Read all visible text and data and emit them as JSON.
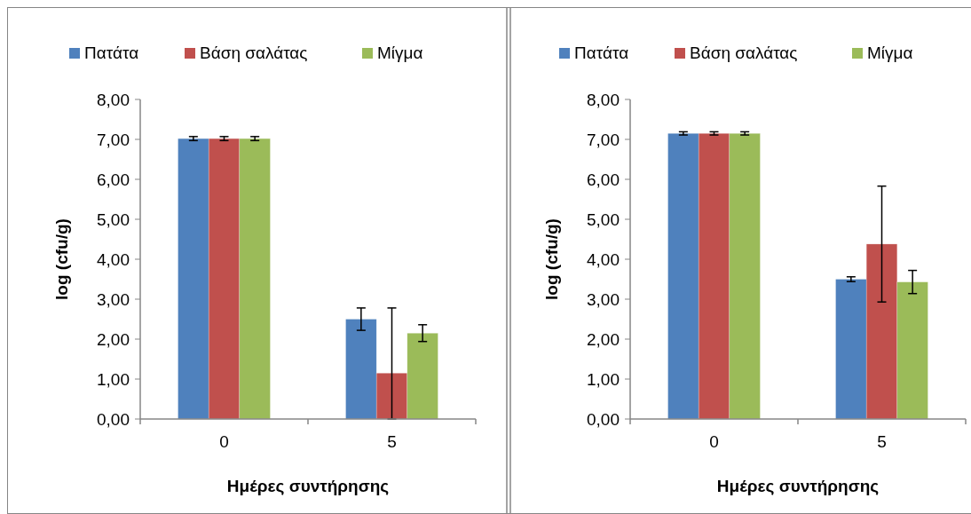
{
  "chart_data": [
    {
      "type": "bar",
      "categories": [
        "0",
        "5"
      ],
      "xlabel": "Ημέρες συντήρησης",
      "ylabel": "log (cfu/g)",
      "ylim": [
        0,
        8
      ],
      "yticks": [
        {
          "value": 0,
          "label": "0,00"
        },
        {
          "value": 1,
          "label": "1,00"
        },
        {
          "value": 2,
          "label": "2,00"
        },
        {
          "value": 3,
          "label": "3,00"
        },
        {
          "value": 4,
          "label": "4,00"
        },
        {
          "value": 5,
          "label": "5,00"
        },
        {
          "value": 6,
          "label": "6,00"
        },
        {
          "value": 7,
          "label": "7,00"
        },
        {
          "value": 8,
          "label": "8,00"
        }
      ],
      "legend": "top",
      "series": [
        {
          "name": "Πατάτα",
          "color": "#4f81bd",
          "values": [
            7.02,
            2.5
          ],
          "errors": [
            0.05,
            0.28
          ]
        },
        {
          "name": "Βάση σαλάτας",
          "color": "#c0504d",
          "values": [
            7.02,
            1.15
          ],
          "errors": [
            0.05,
            [
              0,
              2.78
            ]
          ]
        },
        {
          "name": "Μίγμα",
          "color": "#9bbb59",
          "values": [
            7.02,
            2.15
          ],
          "errors": [
            0.05,
            0.21
          ]
        }
      ]
    },
    {
      "type": "bar",
      "categories": [
        "0",
        "5"
      ],
      "xlabel": "Ημέρες συντήρησης",
      "ylabel": "log (cfu/g)",
      "ylim": [
        0,
        8
      ],
      "yticks": [
        {
          "value": 0,
          "label": "0,00"
        },
        {
          "value": 1,
          "label": "1,00"
        },
        {
          "value": 2,
          "label": "2,00"
        },
        {
          "value": 3,
          "label": "3,00"
        },
        {
          "value": 4,
          "label": "4,00"
        },
        {
          "value": 5,
          "label": "5,00"
        },
        {
          "value": 6,
          "label": "6,00"
        },
        {
          "value": 7,
          "label": "7,00"
        },
        {
          "value": 8,
          "label": "8,00"
        }
      ],
      "legend": "top",
      "series": [
        {
          "name": "Πατάτα",
          "color": "#4f81bd",
          "values": [
            7.15,
            3.5
          ],
          "errors": [
            0.04,
            0.06
          ]
        },
        {
          "name": "Βάση σαλάτας",
          "color": "#c0504d",
          "values": [
            7.15,
            4.38
          ],
          "errors": [
            0.04,
            1.45
          ]
        },
        {
          "name": "Μίγμα",
          "color": "#9bbb59",
          "values": [
            7.15,
            3.43
          ],
          "errors": [
            0.04,
            0.29
          ]
        }
      ]
    }
  ]
}
